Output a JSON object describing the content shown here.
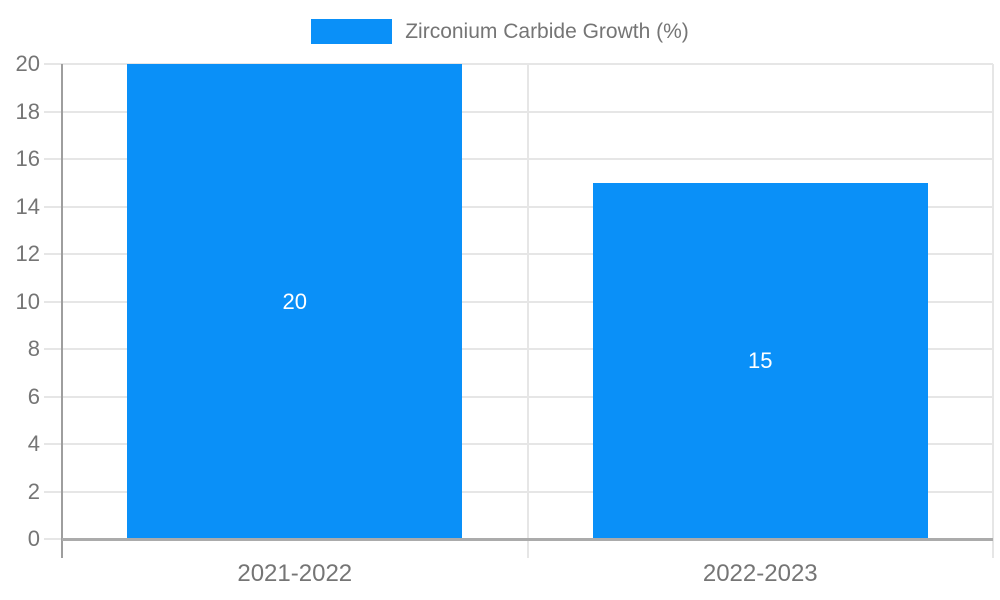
{
  "colors": {
    "background": "#ffffff",
    "bar": "#0a90f8",
    "axis_text": "#757575",
    "gridline": "#e6e6e6",
    "axis_line": "#9e9e9e",
    "baseline": "#ababab",
    "bar_label": "#ffffff"
  },
  "legend": {
    "label": "Zirconium Carbide Growth (%)"
  },
  "chart_data": {
    "type": "bar",
    "title": "",
    "categories": [
      "2021-2022",
      "2022-2023"
    ],
    "series": [
      {
        "name": "Zirconium Carbide Growth (%)",
        "color": "#0a90f8",
        "values": [
          20,
          15
        ]
      }
    ],
    "bar_value_labels": [
      "20",
      "15"
    ],
    "xlabel": "",
    "ylabel": "",
    "ylim": [
      0,
      20
    ],
    "ytick_step": 2,
    "yticks": [
      0,
      2,
      4,
      6,
      8,
      10,
      12,
      14,
      16,
      18,
      20
    ],
    "grid": true,
    "legend_position": "top"
  }
}
